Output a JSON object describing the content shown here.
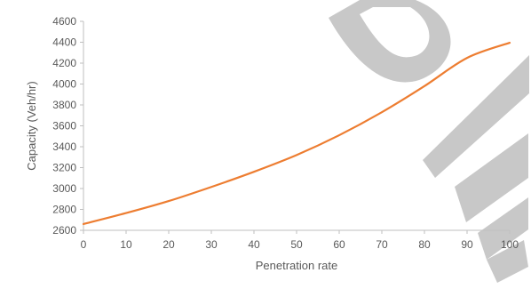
{
  "chart_data": {
    "type": "line",
    "xlabel": "Penetration rate",
    "ylabel": "Capacity (Veh/hr)",
    "xlim": [
      0,
      100
    ],
    "ylim": [
      2600,
      4600
    ],
    "x_ticks": [
      0,
      10,
      20,
      30,
      40,
      50,
      60,
      70,
      80,
      90,
      100
    ],
    "y_ticks": [
      2600,
      2800,
      3000,
      3200,
      3400,
      3600,
      3800,
      4000,
      4200,
      4400,
      4600
    ],
    "grid": false,
    "series": [
      {
        "color": "#ed7d31",
        "x": [
          0,
          10,
          20,
          30,
          40,
          50,
          60,
          70,
          80,
          90,
          100
        ],
        "y": [
          2660,
          2765,
          2880,
          3015,
          3160,
          3320,
          3510,
          3730,
          3980,
          4250,
          4395
        ]
      }
    ]
  },
  "colors": {
    "axis": "#bfbfbf",
    "text": "#595959",
    "watermark": "#c8c8c8"
  }
}
